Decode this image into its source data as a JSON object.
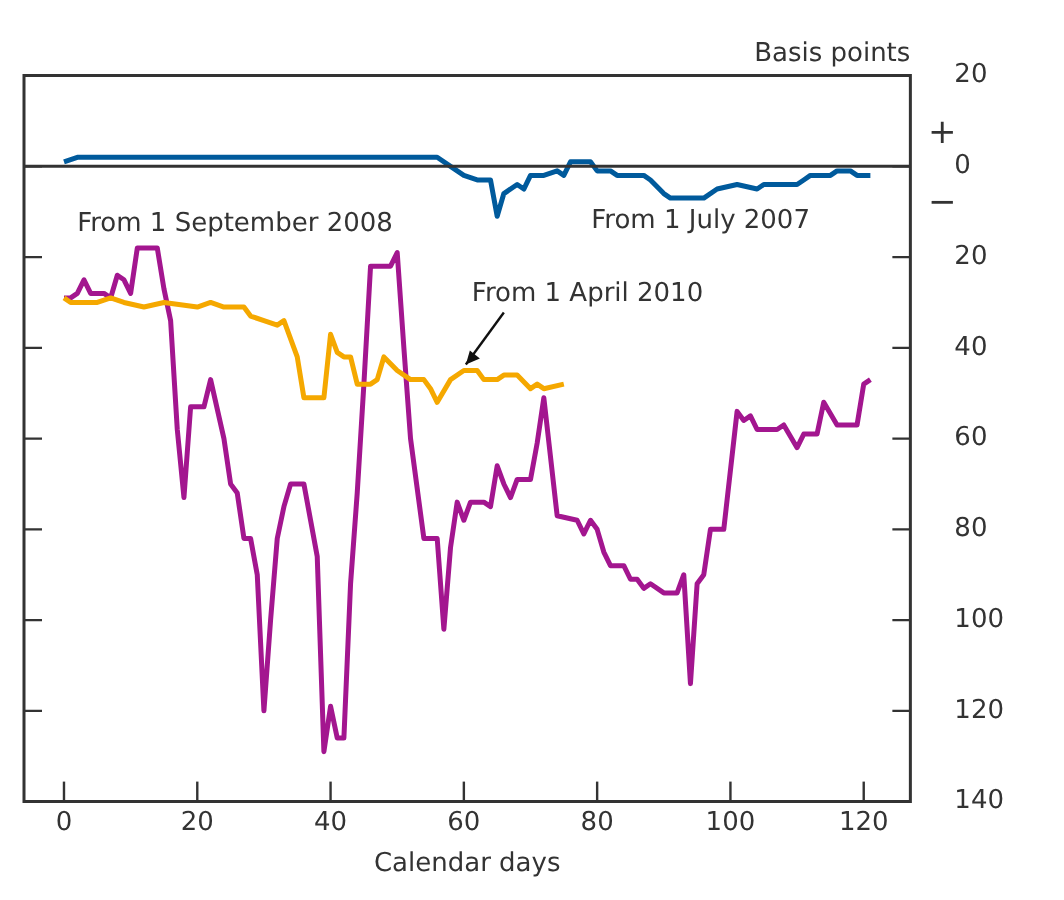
{
  "chart_data": {
    "type": "line",
    "xlabel": "Calendar days",
    "ylabel": "Basis points",
    "xlim": [
      -6,
      127
    ],
    "xticks": [
      0,
      20,
      40,
      60,
      80,
      100,
      120
    ],
    "ylim": [
      -140,
      20
    ],
    "yticks": [
      {
        "value": -140,
        "label": "140"
      },
      {
        "value": -120,
        "label": "120"
      },
      {
        "value": -100,
        "label": "100"
      },
      {
        "value": -80,
        "label": "80"
      },
      {
        "value": -60,
        "label": "60"
      },
      {
        "value": -40,
        "label": "40"
      },
      {
        "value": -20,
        "label": "20"
      },
      0,
      20
    ],
    "legend": false,
    "marker": "none",
    "line_style": "solid",
    "ref_lines": [
      {
        "axis": "y",
        "value": 0,
        "color": "#333333"
      }
    ],
    "annotations": [
      "From 1 July 2007",
      "From 1 September 2008",
      {
        "text": "From 1 April 2010",
        "x": 60,
        "y": -45
      },
      "+",
      "−"
    ],
    "series": [
      {
        "color": "#005a9c",
        "x": [
          0,
          2,
          56,
          58,
          60,
          62,
          64,
          65,
          66,
          68,
          69,
          70,
          72,
          74,
          75,
          76,
          79,
          80,
          82,
          83,
          87,
          88,
          90,
          91,
          96,
          98,
          101,
          104,
          105,
          110,
          111,
          112,
          115,
          116,
          118,
          119,
          121
        ],
        "values": [
          1,
          2,
          2,
          0,
          -2,
          -3,
          -3,
          -11,
          -6,
          -4,
          -5,
          -2,
          -2,
          -1,
          -2,
          1,
          1,
          -1,
          -1,
          -2,
          -2,
          -3,
          -6,
          -7,
          -7,
          -5,
          -4,
          -5,
          -4,
          -4,
          -3,
          -2,
          -2,
          -1,
          -1,
          -2,
          -2
        ]
      },
      {
        "color": "#f5a800",
        "x": [
          0,
          1,
          5,
          7,
          9,
          12,
          15,
          20,
          22,
          24,
          27,
          28,
          30,
          32,
          33,
          35,
          36,
          39,
          40,
          41,
          42,
          43,
          44,
          46,
          47,
          48,
          50,
          52,
          54,
          55,
          56,
          58,
          60,
          62,
          63,
          65,
          66,
          68,
          70,
          71,
          72,
          75
        ],
        "values": [
          -29,
          -30,
          -30,
          -29,
          -30,
          -31,
          -30,
          -31,
          -30,
          -31,
          -31,
          -33,
          -34,
          -35,
          -34,
          -42,
          -51,
          -51,
          -37,
          -41,
          -42,
          -42,
          -48,
          -48,
          -47,
          -42,
          -45,
          -47,
          -47,
          -49,
          -52,
          -47,
          -45,
          -45,
          -47,
          -47,
          -46,
          -46,
          -49,
          -48,
          -49,
          -48
        ]
      },
      {
        "color": "#a3168f",
        "x": [
          0,
          1,
          2,
          3,
          4,
          6,
          7,
          8,
          9,
          10,
          11,
          14,
          15,
          16,
          17,
          18,
          19,
          21,
          22,
          24,
          25,
          26,
          27,
          28,
          29,
          30,
          31,
          32,
          33,
          34,
          36,
          37,
          38,
          39,
          40,
          41,
          42,
          43,
          44,
          45,
          46,
          49,
          50,
          51,
          52,
          54,
          56,
          57,
          58,
          59,
          60,
          61,
          63,
          64,
          65,
          66,
          67,
          68,
          70,
          71,
          72,
          74,
          77,
          78,
          79,
          80,
          81,
          82,
          84,
          85,
          86,
          87,
          88,
          90,
          92,
          93,
          94,
          95,
          96,
          97,
          99,
          101,
          102,
          103,
          104,
          107,
          108,
          110,
          111,
          113,
          114,
          116,
          119,
          120,
          121
        ],
        "values": [
          -29,
          -29,
          -28,
          -25,
          -28,
          -28,
          -29,
          -24,
          -25,
          -28,
          -18,
          -18,
          -27,
          -34,
          -58,
          -73,
          -53,
          -53,
          -47,
          -60,
          -70,
          -72,
          -82,
          -82,
          -90,
          -120,
          -100,
          -82,
          -75,
          -70,
          -70,
          -78,
          -86,
          -129,
          -119,
          -126,
          -126,
          -92,
          -72,
          -48,
          -22,
          -22,
          -19,
          -40,
          -60,
          -82,
          -82,
          -102,
          -84,
          -74,
          -78,
          -74,
          -74,
          -75,
          -66,
          -70,
          -73,
          -69,
          -69,
          -61,
          -51,
          -77,
          -78,
          -81,
          -78,
          -80,
          -85,
          -88,
          -88,
          -91,
          -91,
          -93,
          -92,
          -94,
          -94,
          -90,
          -114,
          -92,
          -90,
          -80,
          -80,
          -54,
          -56,
          -55,
          -58,
          -58,
          -57,
          -62,
          -59,
          -59,
          -52,
          -57,
          -57,
          -48,
          -47
        ]
      }
    ]
  }
}
